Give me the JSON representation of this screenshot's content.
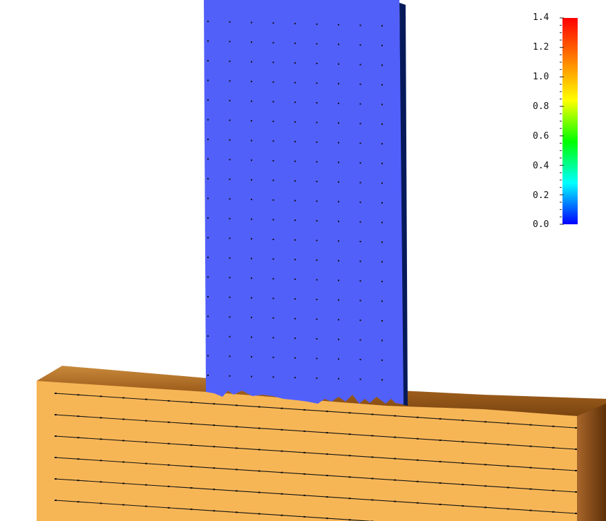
{
  "colorbar": {
    "ticks": [
      "1.4",
      "1.2",
      "1.0",
      "0.8",
      "0.6",
      "0.4",
      "0.2",
      "0.0"
    ],
    "range": [
      0.0,
      1.4
    ],
    "colormap": "rainbow",
    "stops": [
      "#0000ff",
      "#00ffff",
      "#00ff00",
      "#ffff00",
      "#ff7f00",
      "#ff0000"
    ]
  },
  "colors": {
    "impactor": "#5260fa",
    "impactor_edge": "#061a5a",
    "target_front": "#f7b656",
    "target_top": "#ad6a22",
    "target_side": "#7a4410",
    "marker": "#111111"
  }
}
